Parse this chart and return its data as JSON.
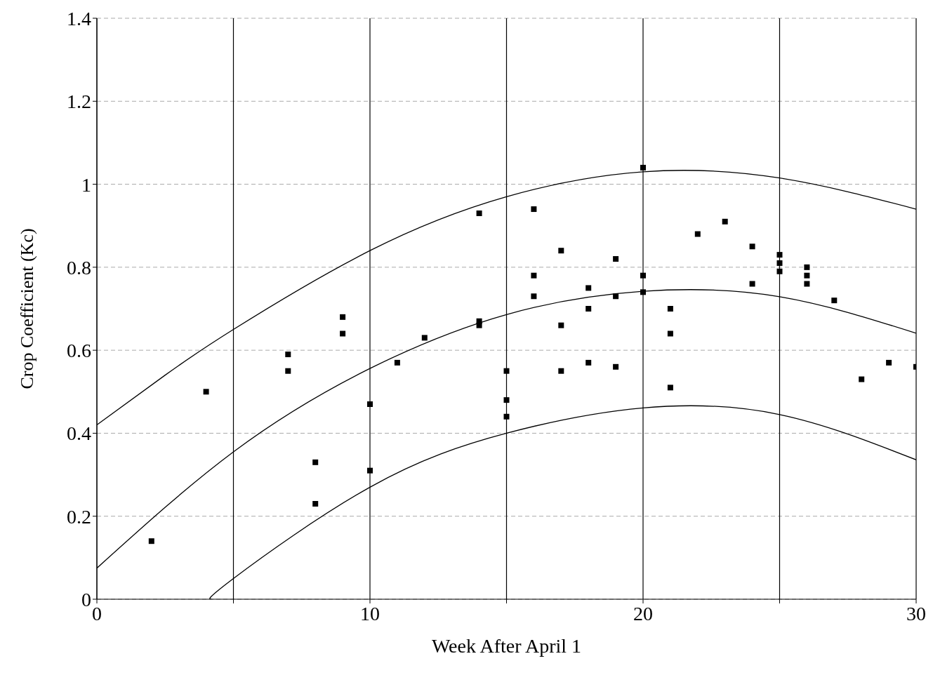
{
  "chart_data": {
    "type": "scatter",
    "xlabel": "Week After April 1",
    "ylabel": "Crop Coefficient (Kc)",
    "xlim": [
      0,
      30
    ],
    "xticks": [
      0,
      {
        "value": 5,
        "label": null
      },
      10,
      {
        "value": 15,
        "label": null
      },
      20,
      {
        "value": 25,
        "label": null
      },
      30
    ],
    "ylim": [
      0,
      1.4
    ],
    "yticks": [
      0,
      0.2,
      0.4,
      0.6,
      0.8,
      1,
      1.2,
      1.4
    ],
    "grid": true,
    "line_style": "solid",
    "series": [
      {
        "marker": "square",
        "color": "#000000",
        "x": [
          2,
          4,
          7,
          7,
          8,
          8,
          9,
          9,
          10,
          10,
          11,
          12,
          14,
          14,
          14,
          15,
          15,
          15,
          16,
          16,
          16,
          17,
          17,
          17,
          18,
          18,
          18,
          19,
          19,
          19,
          20,
          20,
          20,
          21,
          21,
          21,
          22,
          23,
          24,
          24,
          25,
          25,
          25,
          26,
          26,
          26,
          27,
          28,
          29,
          30
        ],
        "values": [
          0.14,
          0.5,
          0.59,
          0.55,
          0.33,
          0.23,
          0.68,
          0.64,
          0.47,
          0.31,
          0.57,
          0.63,
          0.93,
          0.67,
          0.66,
          0.55,
          0.48,
          0.44,
          0.94,
          0.78,
          0.73,
          0.84,
          0.66,
          0.55,
          0.75,
          0.7,
          0.57,
          0.82,
          0.73,
          0.56,
          1.04,
          0.78,
          0.74,
          0.7,
          0.64,
          0.51,
          0.88,
          0.91,
          0.85,
          0.76,
          0.83,
          0.81,
          0.79,
          0.8,
          0.78,
          0.76,
          0.72,
          0.53,
          0.57,
          0.56
        ]
      },
      {
        "type": "line",
        "marker": "none",
        "color": "#000000",
        "x": [
          0,
          2.5,
          5,
          10,
          15,
          20,
          25,
          30
        ],
        "values": [
          0.42,
          0.54,
          0.65,
          0.84,
          0.97,
          1.03,
          1.015,
          0.94
        ]
      },
      {
        "type": "line",
        "marker": "none",
        "color": "#000000",
        "x": [
          0,
          5,
          10,
          15,
          20,
          25,
          30
        ],
        "values": [
          0.075,
          0.355,
          0.556,
          0.686,
          0.742,
          0.729,
          0.641
        ]
      },
      {
        "type": "line",
        "marker": "none",
        "color": "#000000",
        "x": [
          4.2,
          5,
          10,
          15,
          20,
          25,
          30
        ],
        "values": [
          0,
          0.05,
          0.27,
          0.4,
          0.461,
          0.445,
          0.336
        ]
      }
    ]
  }
}
